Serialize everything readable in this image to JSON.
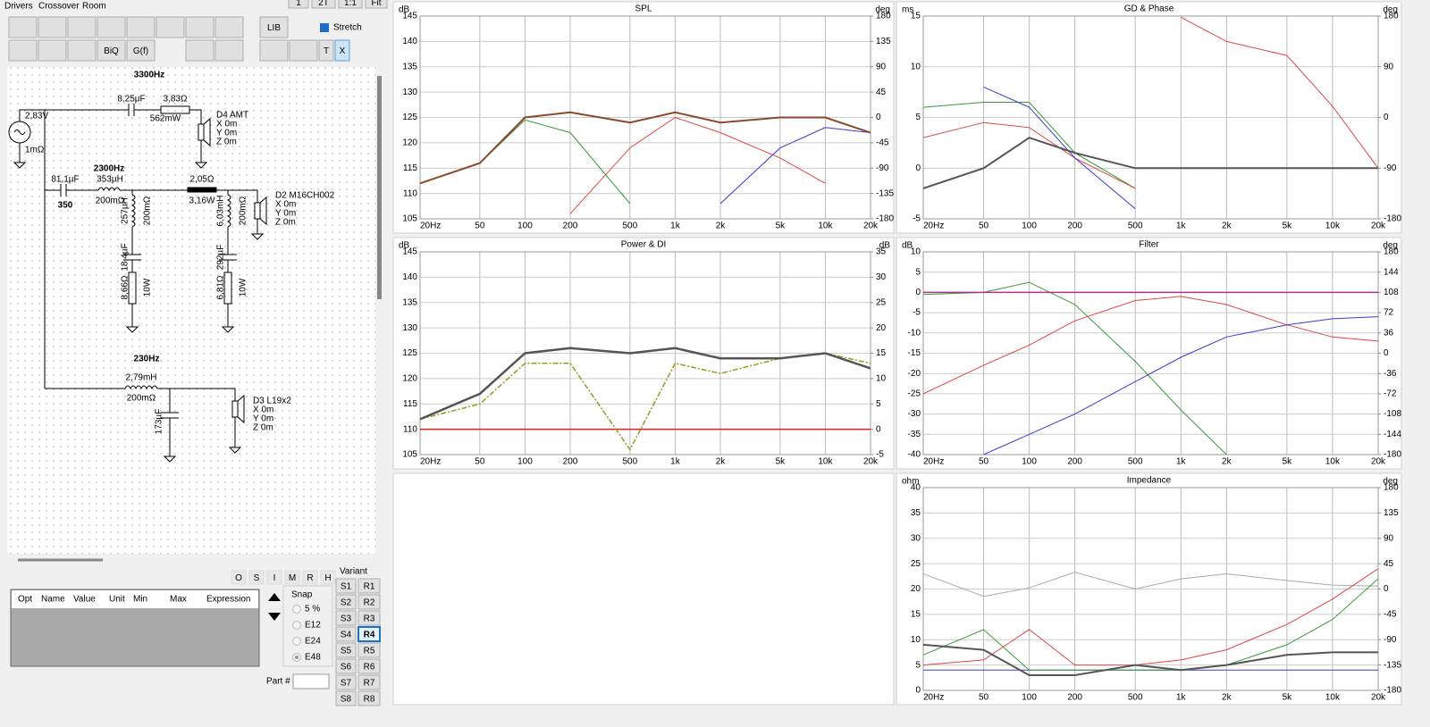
{
  "left_panel": {
    "tabs": [
      "Drivers",
      "Crossover",
      "Room"
    ],
    "view_buttons": [
      "1",
      "2T",
      "1:1",
      "Fit"
    ],
    "tool_buttons": [
      "BiQ",
      "G(f)",
      "LIB",
      "T",
      "X"
    ],
    "stretch": "Stretch",
    "schematic": {
      "crossover_labels": [
        "3300Hz",
        "2300Hz",
        "350",
        "230Hz"
      ],
      "parts": [
        "2,83V",
        "1mΩ",
        "8,25µF",
        "3,83Ω",
        "562mW",
        "81,1µF",
        "353µH",
        "200mΩ",
        "2,05Ω",
        "3,16W",
        "257µH",
        "200mΩ",
        "18,4µF",
        "8,66Ω",
        "10W",
        "6,03mH",
        "200mΩ",
        "292µF",
        "6,81Ω",
        "10W",
        "2,79mH",
        "200mΩ",
        "173µF"
      ],
      "drivers": [
        {
          "name": "D4 AMT",
          "x": "X 0m",
          "y": "Y 0m",
          "z": "Z 0m"
        },
        {
          "name": "D2 M16CH002",
          "x": "X 0m",
          "y": "Y 0m",
          "z": "Z 0m"
        },
        {
          "name": "D3 L19x2",
          "x": "X 0m",
          "y": "Y 0m",
          "z": "Z 0m"
        }
      ]
    },
    "state_buttons": [
      "O",
      "S",
      "I",
      "M",
      "R",
      "H"
    ],
    "table_headers": [
      "Opt",
      "Name",
      "Value",
      "Unit",
      "Min",
      "Max",
      "Expression"
    ],
    "snap": {
      "title": "Snap",
      "options": [
        "5 %",
        "E12",
        "E24",
        "E48"
      ]
    },
    "part": "Part #",
    "variant": {
      "title": "Variant",
      "s": [
        "S1",
        "S2",
        "S3",
        "S4",
        "S5",
        "S6",
        "S7",
        "S8"
      ],
      "r": [
        "R1",
        "R2",
        "R3",
        "R4",
        "R5",
        "R6",
        "R7",
        "R8"
      ]
    }
  },
  "chart_data": [
    {
      "type": "line",
      "title": "SPL",
      "y_unit": "dB",
      "y2_unit": "deg",
      "log_x": true,
      "grid": true,
      "x": [
        20,
        50,
        100,
        200,
        500,
        1000,
        2000,
        5000,
        10000,
        20000
      ],
      "xlim": [
        20,
        20000
      ],
      "xticks": [
        {
          "value": 20,
          "label": "20Hz"
        },
        50,
        100,
        200,
        500,
        {
          "value": 1000,
          "label": "1k"
        },
        {
          "value": 2000,
          "label": "2k"
        },
        {
          "value": 5000,
          "label": "5k"
        },
        {
          "value": 10000,
          "label": "10k"
        },
        {
          "value": 20000,
          "label": "20k"
        }
      ],
      "ylim": [
        105,
        145
      ],
      "yticks": [
        105,
        110,
        115,
        120,
        125,
        130,
        135,
        140,
        145
      ],
      "y2lim": [
        -180,
        180
      ],
      "y2ticks": [
        180,
        135,
        90,
        45,
        0,
        -45,
        -90,
        -135,
        -180
      ],
      "series": [
        {
          "color": "#3a9a3a",
          "width": 1,
          "values": [
            112,
            116,
            124.5,
            122,
            108,
            null,
            null,
            null,
            null,
            null
          ]
        },
        {
          "color": "#e04545",
          "width": 1,
          "values": [
            null,
            null,
            null,
            106,
            119,
            125,
            122,
            117,
            112,
            null
          ]
        },
        {
          "color": "#3b3bd0",
          "width": 1,
          "values": [
            null,
            null,
            null,
            null,
            null,
            null,
            108,
            119,
            123,
            122
          ]
        },
        {
          "color": "#8b4a2b",
          "width": 2,
          "values": [
            112,
            116,
            125,
            126,
            124,
            126,
            124,
            125,
            125,
            122
          ]
        }
      ]
    },
    {
      "type": "line",
      "title": "Power & DI",
      "y_unit": "dB",
      "y2_unit": "dB",
      "log_x": true,
      "grid": true,
      "x": [
        20,
        50,
        100,
        200,
        500,
        1000,
        2000,
        5000,
        10000,
        20000
      ],
      "xlim": [
        20,
        20000
      ],
      "xticks": [
        {
          "value": 20,
          "label": "20Hz"
        },
        50,
        100,
        200,
        500,
        {
          "value": 1000,
          "label": "1k"
        },
        {
          "value": 2000,
          "label": "2k"
        },
        {
          "value": 5000,
          "label": "5k"
        },
        {
          "value": 10000,
          "label": "10k"
        },
        {
          "value": 20000,
          "label": "20k"
        }
      ],
      "ylim": [
        105,
        145
      ],
      "yticks": [
        105,
        110,
        115,
        120,
        125,
        130,
        135,
        140,
        145
      ],
      "y2lim": [
        -5,
        35
      ],
      "y2ticks": [
        35,
        30,
        25,
        20,
        15,
        10,
        5,
        0,
        -5
      ],
      "series": [
        {
          "color": "#e02020",
          "width": 1.5,
          "values": [
            110,
            110,
            110,
            110,
            110,
            110,
            110,
            110,
            110,
            110
          ]
        },
        {
          "color": "#9a9a20",
          "width": 1.5,
          "dash": true,
          "axis": "y2",
          "values": [
            2,
            5,
            13,
            13,
            -4,
            13,
            11,
            14,
            15,
            13
          ]
        },
        {
          "color": "#555555",
          "width": 2.5,
          "values": [
            112,
            117,
            125,
            126,
            125,
            126,
            124,
            124,
            125,
            122
          ]
        }
      ]
    },
    {
      "type": "line",
      "title": "GD & Phase",
      "y_unit": "ms",
      "y2_unit": "deg",
      "log_x": true,
      "grid": true,
      "x": [
        20,
        50,
        100,
        200,
        500,
        1000,
        2000,
        5000,
        10000,
        20000
      ],
      "xlim": [
        20,
        20000
      ],
      "xticks": [
        {
          "value": 20,
          "label": "20Hz"
        },
        50,
        100,
        200,
        500,
        {
          "value": 1000,
          "label": "1k"
        },
        {
          "value": 2000,
          "label": "2k"
        },
        {
          "value": 5000,
          "label": "5k"
        },
        {
          "value": 10000,
          "label": "10k"
        },
        {
          "value": 20000,
          "label": "20k"
        }
      ],
      "ylim": [
        -5,
        15
      ],
      "yticks": [
        15,
        10,
        5,
        0,
        -5
      ],
      "y2lim": [
        -180,
        180
      ],
      "y2ticks": [
        180,
        90,
        0,
        -90,
        -180
      ],
      "series": [
        {
          "color": "#3a9a3a",
          "width": 1,
          "values": [
            6,
            6.5,
            6.5,
            1.5,
            -2,
            null,
            null,
            null,
            null,
            null
          ]
        },
        {
          "color": "#e04545",
          "width": 1,
          "values": [
            3,
            4.5,
            4,
            1,
            -2,
            null,
            null,
            null,
            null,
            null
          ]
        },
        {
          "color": "#3b3bd0",
          "width": 1,
          "values": [
            null,
            8,
            6,
            1,
            -4,
            null,
            null,
            null,
            null,
            null
          ]
        },
        {
          "color": "#e04545",
          "width": 1,
          "axis": "y2",
          "values": [
            null,
            null,
            null,
            null,
            null,
            178,
            135,
            110,
            20,
            -90
          ]
        },
        {
          "color": "#555555",
          "width": 2,
          "values": [
            -2,
            0,
            3,
            1.5,
            0,
            0,
            0,
            0,
            0,
            0
          ]
        }
      ]
    },
    {
      "type": "line",
      "title": "Filter",
      "y_unit": "dB",
      "y2_unit": "deg",
      "log_x": true,
      "grid": true,
      "x": [
        20,
        50,
        100,
        200,
        500,
        1000,
        2000,
        5000,
        10000,
        20000
      ],
      "xlim": [
        20,
        20000
      ],
      "xticks": [
        {
          "value": 20,
          "label": "20Hz"
        },
        50,
        100,
        200,
        500,
        {
          "value": 1000,
          "label": "1k"
        },
        {
          "value": 2000,
          "label": "2k"
        },
        {
          "value": 5000,
          "label": "5k"
        },
        {
          "value": 10000,
          "label": "10k"
        },
        {
          "value": 20000,
          "label": "20k"
        }
      ],
      "ylim": [
        -40,
        10
      ],
      "yticks": [
        10,
        5,
        0,
        -5,
        -10,
        -15,
        -20,
        -25,
        -30,
        -35,
        -40
      ],
      "y2lim": [
        -180,
        180
      ],
      "y2ticks": [
        180,
        144,
        108,
        72,
        36,
        0,
        -36,
        -72,
        -108,
        -144,
        -180
      ],
      "series": [
        {
          "color": "#3a9a3a",
          "width": 1,
          "values": [
            -0.5,
            0,
            2.5,
            -3,
            -17,
            -29,
            -40,
            null,
            null,
            null
          ]
        },
        {
          "color": "#e04545",
          "width": 1,
          "values": [
            -25,
            -18,
            -13,
            -7,
            -2,
            -1,
            -3,
            -8,
            -11,
            -12
          ]
        },
        {
          "color": "#3b3bd0",
          "width": 1,
          "values": [
            null,
            -40,
            -35,
            -30,
            -22,
            -16,
            -11,
            -8,
            -6.5,
            -6
          ]
        },
        {
          "color": "#b03090",
          "width": 1.5,
          "values": [
            0,
            0,
            0,
            0,
            0,
            0,
            0,
            0,
            0,
            0
          ]
        }
      ]
    },
    {
      "type": "line",
      "title": "Impedance",
      "y_unit": "ohm",
      "y2_unit": "deg",
      "log_x": true,
      "grid": true,
      "x": [
        20,
        50,
        100,
        200,
        500,
        1000,
        2000,
        5000,
        10000,
        20000
      ],
      "xlim": [
        20,
        20000
      ],
      "xticks": [
        {
          "value": 20,
          "label": "20Hz"
        },
        50,
        100,
        200,
        500,
        {
          "value": 1000,
          "label": "1k"
        },
        {
          "value": 2000,
          "label": "2k"
        },
        {
          "value": 5000,
          "label": "5k"
        },
        {
          "value": 10000,
          "label": "10k"
        },
        {
          "value": 20000,
          "label": "20k"
        }
      ],
      "ylim": [
        0,
        40
      ],
      "yticks": [
        40,
        35,
        30,
        25,
        20,
        15,
        10,
        5,
        0
      ],
      "y2lim": [
        -180,
        180
      ],
      "y2ticks": [
        180,
        135,
        90,
        45,
        0,
        -45,
        -90,
        -135,
        -180
      ],
      "series": [
        {
          "color": "#aaaaaa",
          "width": 1,
          "axis": "y2",
          "values": [
            27,
            -13,
            2,
            30,
            0,
            18,
            27,
            15,
            7,
            5
          ]
        },
        {
          "color": "#3b3bd0",
          "width": 1,
          "values": [
            4,
            4,
            4,
            4,
            4,
            4,
            4,
            4,
            4,
            4
          ]
        },
        {
          "color": "#e04545",
          "width": 1,
          "values": [
            5,
            6,
            12,
            5,
            5,
            6,
            8,
            13,
            18,
            24
          ]
        },
        {
          "color": "#3a9a3a",
          "width": 1,
          "values": [
            7,
            12,
            4,
            4,
            4,
            4,
            5,
            9,
            14,
            22
          ]
        },
        {
          "color": "#555555",
          "width": 2,
          "values": [
            9,
            8,
            3,
            3,
            5,
            4,
            5,
            7,
            7.5,
            7.5
          ]
        }
      ]
    }
  ]
}
